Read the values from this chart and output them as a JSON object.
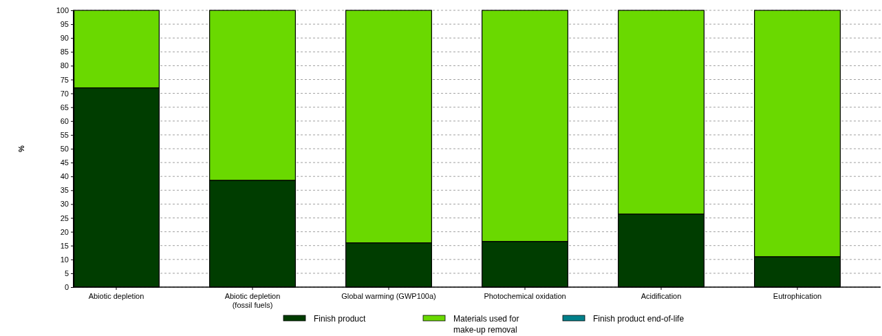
{
  "chart_data": {
    "type": "bar",
    "stacked": true,
    "ylabel": "%",
    "categories": [
      "Abiotic depletion",
      "Abiotic depletion\n(fossil fuels)",
      "Global warming (GWP100a)",
      "Photochemical oxidation",
      "Acidification",
      "Eutrophication"
    ],
    "series": [
      {
        "name": "Finish product",
        "color": "#003d00",
        "values": [
          72,
          38.6,
          16,
          16.5,
          26.4,
          11
        ]
      },
      {
        "name": "Materials used for\nmake-up removal",
        "color": "#6ad900",
        "values": [
          28,
          61.4,
          84,
          83.5,
          73.6,
          89
        ]
      },
      {
        "name": "Finish product end-of-life",
        "color": "#00808a",
        "values": [
          0,
          0,
          0,
          0,
          0,
          0
        ]
      }
    ],
    "ylim": [
      0,
      100
    ],
    "yticks": [
      0,
      5,
      10,
      15,
      20,
      25,
      30,
      35,
      40,
      45,
      50,
      55,
      60,
      65,
      70,
      75,
      80,
      85,
      90,
      95,
      100
    ],
    "grid": "y",
    "legend": "bottom"
  }
}
